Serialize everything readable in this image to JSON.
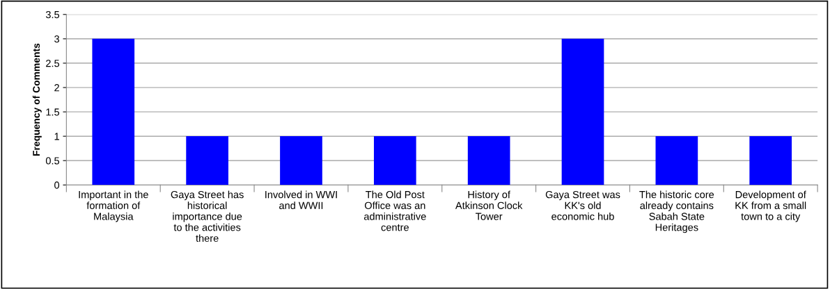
{
  "chart_data": {
    "type": "bar",
    "ylabel": "Frequency of Comments",
    "categories": [
      "Important in the\nformation of\nMalaysia",
      "Gaya Street has\nhistorical\nimportance due\nto the activities\nthere",
      "Involved in WWI\nand WWII",
      "The Old Post\nOffice was an\nadministrative\ncentre",
      "History of\nAtkinson Clock\nTower",
      "Gaya Street was\nKK's old\neconomic hub",
      "The historic core\nalready contains\nSabah State\nHeritages",
      "Development of\nKK from a small\ntown to a city"
    ],
    "values": [
      3,
      1,
      1,
      1,
      1,
      3,
      1,
      1
    ],
    "color": "#0000ff",
    "ylim": [
      0,
      3.5
    ],
    "yticks": [
      0,
      0.5,
      1,
      1.5,
      2,
      2.5,
      3,
      3.5
    ],
    "grid": "y",
    "legend": false
  }
}
